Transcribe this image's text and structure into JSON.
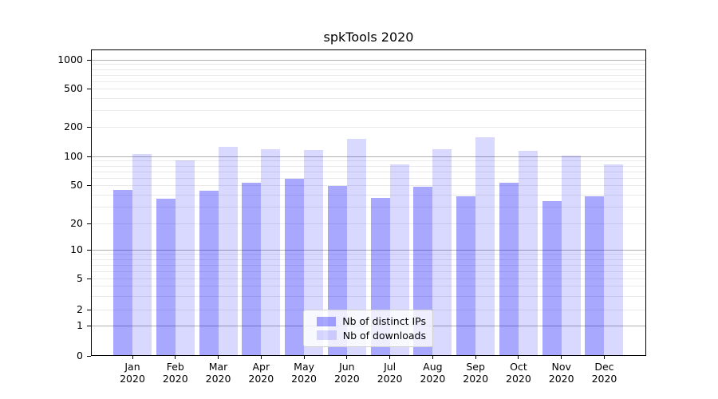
{
  "chart_data": {
    "type": "bar",
    "title": "spkTools 2020",
    "categories": [
      "Jan",
      "Feb",
      "Mar",
      "Apr",
      "May",
      "Jun",
      "Jul",
      "Aug",
      "Sep",
      "Oct",
      "Nov",
      "Dec"
    ],
    "x_year": "2020",
    "series": [
      {
        "name": "Nb of distinct IPs",
        "color": "#0000ff",
        "alpha": 0.34,
        "values": [
          45,
          36,
          44,
          53,
          58,
          49,
          37,
          48,
          38,
          53,
          34,
          38
        ]
      },
      {
        "name": "Nb of downloads",
        "color": "#0000ff",
        "alpha": 0.15,
        "values": [
          106,
          91,
          125,
          118,
          117,
          151,
          83,
          118,
          158,
          115,
          101,
          82
        ]
      }
    ],
    "yscale": "symlog",
    "yticks": [
      0,
      1,
      2,
      5,
      10,
      20,
      50,
      100,
      200,
      500,
      1000
    ],
    "ylim": [
      0,
      1200
    ],
    "xlabel": "",
    "ylabel": "",
    "grid": "both",
    "legend_position": "lower center"
  },
  "colors": {
    "major_grid": "#b0b0b0",
    "minor_grid": "#e9e9e9",
    "axis": "#000000",
    "background": "#ffffff"
  }
}
